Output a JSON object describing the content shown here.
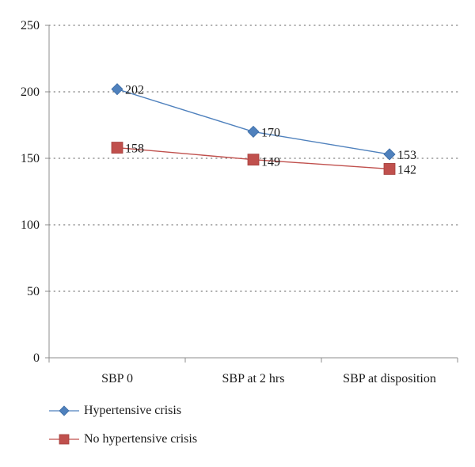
{
  "chart_data": {
    "type": "line",
    "title": "",
    "xlabel": "",
    "ylabel": "",
    "categories": [
      "SBP 0",
      "SBP at 2 hrs",
      "SBP at disposition"
    ],
    "ylim": [
      0,
      250
    ],
    "yticks": [
      0,
      50,
      100,
      150,
      200,
      250
    ],
    "grid": "horizontal dotted",
    "legend_position": "bottom-left",
    "series": [
      {
        "name": "Hypertensive crisis",
        "values": [
          202,
          170,
          153
        ],
        "marker": "diamond",
        "color": "#4f81bd",
        "labels": [
          "202",
          "170",
          "153"
        ]
      },
      {
        "name": "No hypertensive crisis",
        "values": [
          158,
          149,
          142
        ],
        "marker": "square",
        "color": "#c0504d",
        "labels": [
          "158",
          "149",
          "142"
        ]
      }
    ]
  }
}
